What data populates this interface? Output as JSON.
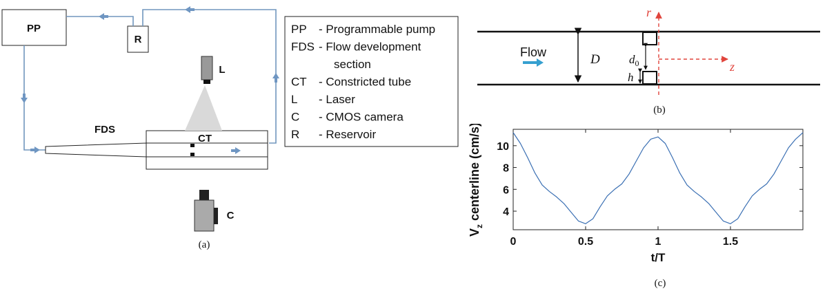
{
  "panel_a": {
    "caption": "(a)",
    "labels": {
      "pp": "PP",
      "r": "R",
      "l": "L",
      "fds": "FDS",
      "ct": "CT",
      "c": "C"
    },
    "legend": [
      {
        "abbr": "PP",
        "desc": "- Programmable pump"
      },
      {
        "abbr": "FDS",
        "desc": "- Flow development"
      },
      {
        "abbr": "",
        "desc": "section"
      },
      {
        "abbr": "CT",
        "desc": "- Constricted tube"
      },
      {
        "abbr": "L",
        "desc": "- Laser"
      },
      {
        "abbr": "C",
        "desc": "- CMOS camera"
      },
      {
        "abbr": "R",
        "desc": "- Reservoir"
      }
    ],
    "colors": {
      "pipe": "#7096bd",
      "arrow": "#6f96c2"
    }
  },
  "panel_b": {
    "caption": "(b)",
    "flow_label": "Flow",
    "diameter_label": "D",
    "gap_label_base": "d",
    "gap_label_sub": "0",
    "height_label": "h",
    "r_axis": "r",
    "z_axis": "z",
    "colors": {
      "axis": "#e0443c",
      "flow_arrow": "#36a0d0"
    }
  },
  "panel_c": {
    "caption": "(c)",
    "chart_data": {
      "type": "line",
      "xlabel": "t/T",
      "ylabel": "V centerline (cm/s)",
      "ylabel_base": "V",
      "ylabel_sub": "z",
      "ylabel_rest": " centerline (cm/s)",
      "xlim": [
        0,
        2
      ],
      "ylim": [
        2.3,
        11.5
      ],
      "xticks": [
        0,
        0.5,
        1,
        1.5
      ],
      "xtick_labels": [
        "0",
        "0.5",
        "1",
        "1.5"
      ],
      "yticks": [
        4,
        6,
        8,
        10
      ],
      "ytick_labels": [
        "4",
        "6",
        "8",
        "10"
      ],
      "series": [
        {
          "color": "#3a6fb3",
          "x": [
            0,
            0.05,
            0.1,
            0.15,
            0.2,
            0.25,
            0.3,
            0.35,
            0.4,
            0.45,
            0.5,
            0.55,
            0.6,
            0.65,
            0.7,
            0.75,
            0.8,
            0.85,
            0.9,
            0.95,
            1.0,
            1.05,
            1.1,
            1.15,
            1.2,
            1.25,
            1.3,
            1.35,
            1.4,
            1.45,
            1.5,
            1.55,
            1.6,
            1.65,
            1.7,
            1.75,
            1.8,
            1.85,
            1.9,
            1.95,
            2.0
          ],
          "y": [
            11.2,
            10.2,
            8.9,
            7.5,
            6.4,
            5.8,
            5.3,
            4.7,
            3.9,
            3.1,
            2.85,
            3.3,
            4.4,
            5.4,
            6.0,
            6.5,
            7.4,
            8.6,
            9.8,
            10.6,
            10.8,
            10.2,
            8.9,
            7.5,
            6.4,
            5.8,
            5.3,
            4.7,
            3.9,
            3.1,
            2.85,
            3.3,
            4.4,
            5.4,
            6.0,
            6.5,
            7.4,
            8.6,
            9.8,
            10.6,
            11.2
          ]
        }
      ]
    }
  }
}
